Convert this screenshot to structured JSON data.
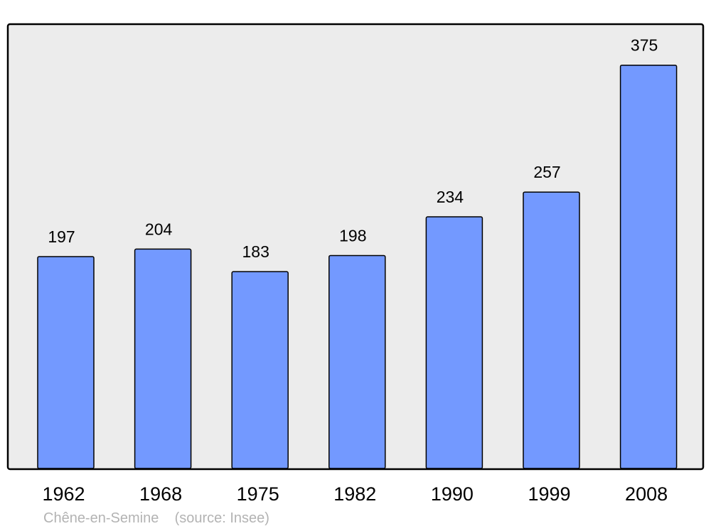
{
  "chart_data": {
    "type": "bar",
    "categories": [
      "1962",
      "1968",
      "1975",
      "1982",
      "1990",
      "1999",
      "2008"
    ],
    "values": [
      197,
      204,
      183,
      198,
      234,
      257,
      375
    ],
    "data_labels": [
      "197",
      "204",
      "183",
      "198",
      "234",
      "257",
      "375"
    ],
    "title": "",
    "xlabel": "",
    "ylabel": "",
    "ylim": [
      0,
      412.5
    ],
    "grid": false,
    "colors": {
      "bar": "#7399ff",
      "background": "#ececec",
      "border": "#000000"
    }
  },
  "footer": {
    "place": "Chêne-en-Semine",
    "source": "(source: Insee)"
  }
}
